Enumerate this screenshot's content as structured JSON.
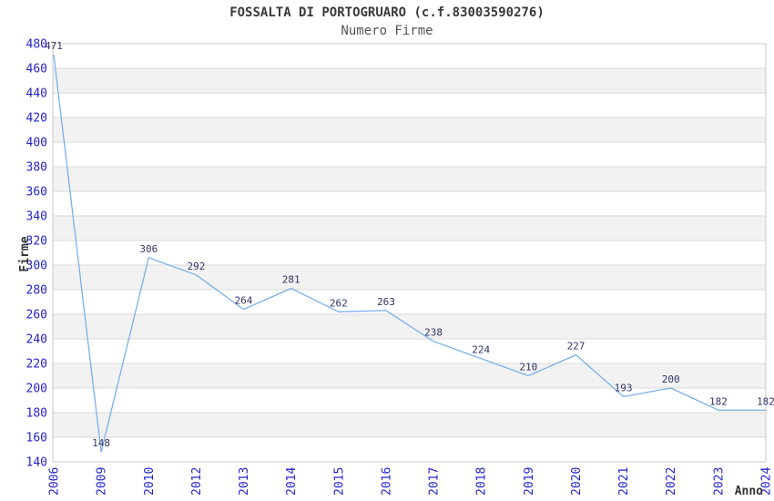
{
  "chart_data": {
    "type": "line",
    "title": "FOSSALTA DI PORTOGRUARO (c.f.83003590276)",
    "subtitle": "Numero Firme",
    "xlabel": "Anno",
    "ylabel": "Firme",
    "categories": [
      "2006",
      "2009",
      "2010",
      "2012",
      "2013",
      "2014",
      "2015",
      "2016",
      "2017",
      "2018",
      "2019",
      "2020",
      "2021",
      "2022",
      "2023",
      "2024"
    ],
    "values": [
      471,
      148,
      306,
      292,
      264,
      281,
      262,
      263,
      238,
      224,
      210,
      227,
      193,
      200,
      182,
      182
    ],
    "ylim": [
      140,
      480
    ],
    "ytick_step": 20,
    "yticks": [
      140,
      160,
      180,
      200,
      220,
      240,
      260,
      280,
      300,
      320,
      340,
      360,
      380,
      400,
      420,
      440,
      460,
      480
    ],
    "grid": "horizontal",
    "banded_background": true,
    "legend": "none",
    "value_labels_shown": true,
    "colors": {
      "line": "#7cb0e8",
      "axis_tick_labels": "#2424cc",
      "value_labels": "#333369",
      "axis_titles": "#333333",
      "title": "#3a3a3a",
      "subtitle": "#555555",
      "band": "#f2f2f2",
      "plot_background": "#ffffff",
      "grid": "#d9d9d9",
      "border": "#c9c9c9",
      "page_background": "#ffffff"
    }
  }
}
